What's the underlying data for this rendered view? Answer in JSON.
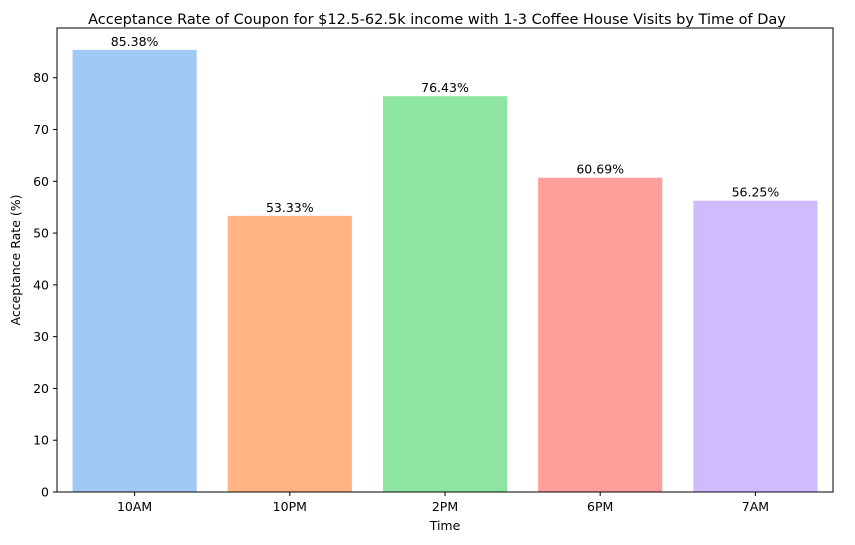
{
  "chart_data": {
    "type": "bar",
    "title": "Acceptance Rate of Coupon for $12.5-62.5k income with 1-3 Coffee House Visits by Time of Day",
    "xlabel": "Time",
    "ylabel": "Acceptance Rate (%)",
    "categories": [
      "10AM",
      "10PM",
      "2PM",
      "6PM",
      "7AM"
    ],
    "values": [
      85.38,
      53.33,
      76.43,
      60.69,
      56.25
    ],
    "data_labels": [
      "85.38%",
      "53.33%",
      "76.43%",
      "60.69%",
      "56.25%"
    ],
    "colors": [
      "#a1c9f4",
      "#ffb482",
      "#8de5a1",
      "#ff9f9b",
      "#d0bbff"
    ],
    "ylim": [
      0,
      89.6
    ],
    "yticks": [
      0,
      10,
      20,
      30,
      40,
      50,
      60,
      70,
      80
    ],
    "grid": false,
    "legend": "none"
  }
}
